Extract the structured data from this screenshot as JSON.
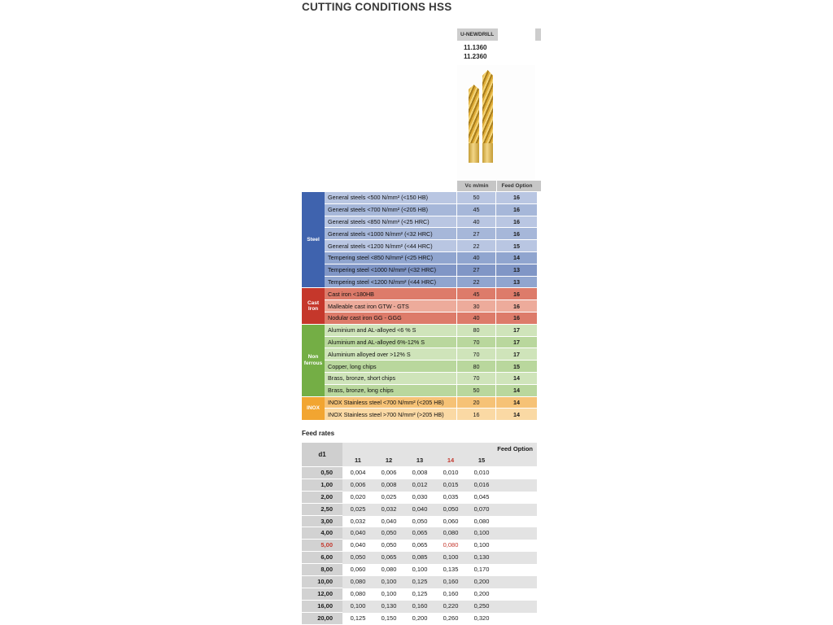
{
  "page": {
    "title": "CUTTING CONDITIONS HSS"
  },
  "product": {
    "name": "U-NEWDRILL",
    "codes": [
      "11.1360",
      "11.2360"
    ],
    "vc_header": "Vc m/min",
    "feed_header": "Feed Option"
  },
  "materials": {
    "groups": [
      {
        "label": "Steel",
        "color": "#3f63ae",
        "rows": [
          {
            "name": "General steels <500 N/mm²  (<150 HB)",
            "vc": "50",
            "feed": "16"
          },
          {
            "name": "General steels <700 N/mm²  (<205 HB)",
            "vc": "45",
            "feed": "16"
          },
          {
            "name": "General steels <850 N/mm² (<25 HRC)",
            "vc": "40",
            "feed": "16"
          },
          {
            "name": "General steels <1000 N/mm² (<32 HRC)",
            "vc": "27",
            "feed": "16"
          },
          {
            "name": "General steels <1200 N/mm²  (<44 HRC)",
            "vc": "22",
            "feed": "15"
          },
          {
            "name": "Tempering steel  <850 N/mm²  (<25 HRC)",
            "vc": "40",
            "feed": "14"
          },
          {
            "name": "Tempering steel  <1000 N/mm²  (<32 HRC)",
            "vc": "27",
            "feed": "13"
          },
          {
            "name": "Tempering steel  <1200 N/mm²  (<44 HRC)",
            "vc": "22",
            "feed": "13"
          }
        ]
      },
      {
        "label": "Cast Iron",
        "color": "#c5372b",
        "rows": [
          {
            "name": "Cast iron <180HB",
            "vc": "45",
            "feed": "16"
          },
          {
            "name": "Malleable cast iron GTW - GTS",
            "vc": "30",
            "feed": "16"
          },
          {
            "name": "Nodular cast iron  GG - GGG",
            "vc": "40",
            "feed": "16"
          }
        ]
      },
      {
        "label": "Non ferrous",
        "color": "#74ae45",
        "rows": [
          {
            "name": "Aluminium and AL-alloyed   <6 % S",
            "vc": "80",
            "feed": "17"
          },
          {
            "name": "Aluminium and AL-alloyed 6%-12% S",
            "vc": "70",
            "feed": "17"
          },
          {
            "name": "Aluminium alloyed over   >12% S",
            "vc": "70",
            "feed": "17"
          },
          {
            "name": "Copper, long chips",
            "vc": "80",
            "feed": "15"
          },
          {
            "name": "Brass, bronze, short chips",
            "vc": "70",
            "feed": "14"
          },
          {
            "name": "Brass, bronze, long chips",
            "vc": "50",
            "feed": "14"
          }
        ]
      },
      {
        "label": "INOX",
        "color": "#f2a531",
        "rows": [
          {
            "name": "INOX Stainless steel  <700 N/mm² (<205 HB)",
            "vc": "20",
            "feed": "14"
          },
          {
            "name": "INOX Stainless steel  >700 N/mm² (>205 HB)",
            "vc": "16",
            "feed": "14"
          }
        ]
      }
    ]
  },
  "feed_rates": {
    "title": "Feed rates",
    "d1_label": "d1",
    "span_label": "Feed Option",
    "columns": [
      "11",
      "12",
      "13",
      "14",
      "15"
    ],
    "highlight_column": "14",
    "highlight_row": "5,00",
    "highlight_color": "#c4372d",
    "rows": [
      {
        "d1": "0,50",
        "values": [
          "0,004",
          "0,006",
          "0,008",
          "0,010",
          "0,010"
        ]
      },
      {
        "d1": "1,00",
        "values": [
          "0,006",
          "0,008",
          "0,012",
          "0,015",
          "0,016"
        ]
      },
      {
        "d1": "2,00",
        "values": [
          "0,020",
          "0,025",
          "0,030",
          "0,035",
          "0,045"
        ]
      },
      {
        "d1": "2,50",
        "values": [
          "0,025",
          "0,032",
          "0,040",
          "0,050",
          "0,070"
        ]
      },
      {
        "d1": "3,00",
        "values": [
          "0,032",
          "0,040",
          "0,050",
          "0,060",
          "0,080"
        ]
      },
      {
        "d1": "4,00",
        "values": [
          "0,040",
          "0,050",
          "0,065",
          "0,080",
          "0,100"
        ]
      },
      {
        "d1": "5,00",
        "values": [
          "0,040",
          "0,050",
          "0,065",
          "0,080",
          "0,100"
        ]
      },
      {
        "d1": "6,00",
        "values": [
          "0,050",
          "0,065",
          "0,085",
          "0,100",
          "0,130"
        ]
      },
      {
        "d1": "8,00",
        "values": [
          "0,060",
          "0,080",
          "0,100",
          "0,135",
          "0,170"
        ]
      },
      {
        "d1": "10,00",
        "values": [
          "0,080",
          "0,100",
          "0,125",
          "0,160",
          "0,200"
        ]
      },
      {
        "d1": "12,00",
        "values": [
          "0,080",
          "0,100",
          "0,125",
          "0,160",
          "0,200"
        ]
      },
      {
        "d1": "16,00",
        "values": [
          "0,100",
          "0,130",
          "0,160",
          "0,220",
          "0,250"
        ]
      },
      {
        "d1": "20,00",
        "values": [
          "0,125",
          "0,150",
          "0,200",
          "0,260",
          "0,320"
        ]
      }
    ]
  }
}
